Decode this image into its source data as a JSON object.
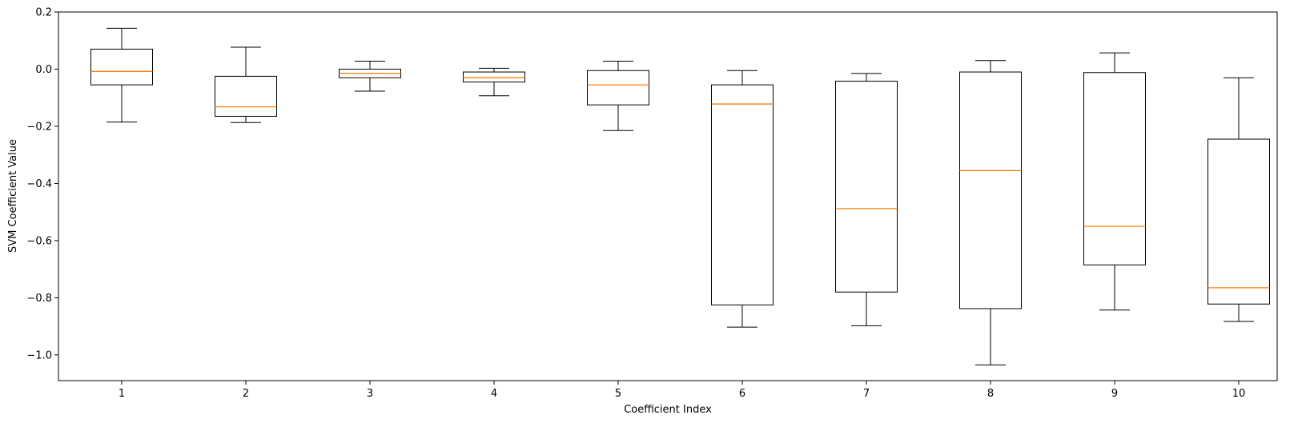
{
  "chart_data": {
    "type": "boxplot",
    "title": "",
    "xlabel": "Coefficient Index",
    "ylabel": "SVM Coefficient Value",
    "ylim": [
      -1.09,
      0.2
    ],
    "yticks": [
      0.2,
      0.0,
      -0.2,
      -0.4,
      -0.6,
      -0.8,
      -1.0
    ],
    "ytick_labels": [
      "0.2",
      "0.0",
      "−0.2",
      "−0.4",
      "−0.6",
      "−0.8",
      "−1.0"
    ],
    "categories": [
      "1",
      "2",
      "3",
      "4",
      "5",
      "6",
      "7",
      "8",
      "9",
      "10"
    ],
    "boxes": [
      {
        "whisker_low": -0.185,
        "q1": -0.055,
        "median": -0.008,
        "q3": 0.07,
        "whisker_high": 0.143
      },
      {
        "whisker_low": -0.187,
        "q1": -0.165,
        "median": -0.132,
        "q3": -0.025,
        "whisker_high": 0.077
      },
      {
        "whisker_low": -0.077,
        "q1": -0.03,
        "median": -0.015,
        "q3": 0.0,
        "whisker_high": 0.028
      },
      {
        "whisker_low": -0.093,
        "q1": -0.045,
        "median": -0.03,
        "q3": -0.01,
        "whisker_high": 0.003
      },
      {
        "whisker_low": -0.215,
        "q1": -0.125,
        "median": -0.055,
        "q3": -0.005,
        "whisker_high": 0.028
      },
      {
        "whisker_low": -0.903,
        "q1": -0.825,
        "median": -0.122,
        "q3": -0.055,
        "whisker_high": -0.005
      },
      {
        "whisker_low": -0.898,
        "q1": -0.78,
        "median": -0.488,
        "q3": -0.042,
        "whisker_high": -0.015
      },
      {
        "whisker_low": -1.035,
        "q1": -0.838,
        "median": -0.355,
        "q3": -0.01,
        "whisker_high": 0.03
      },
      {
        "whisker_low": -0.843,
        "q1": -0.685,
        "median": -0.55,
        "q3": -0.012,
        "whisker_high": 0.057
      },
      {
        "whisker_low": -0.883,
        "q1": -0.822,
        "median": -0.765,
        "q3": -0.245,
        "whisker_high": -0.03
      }
    ],
    "grid": false,
    "legend": "none",
    "colors": {
      "box": "#000000",
      "median": "#ff7f0e",
      "axis": "#000000",
      "background": "#ffffff"
    }
  }
}
